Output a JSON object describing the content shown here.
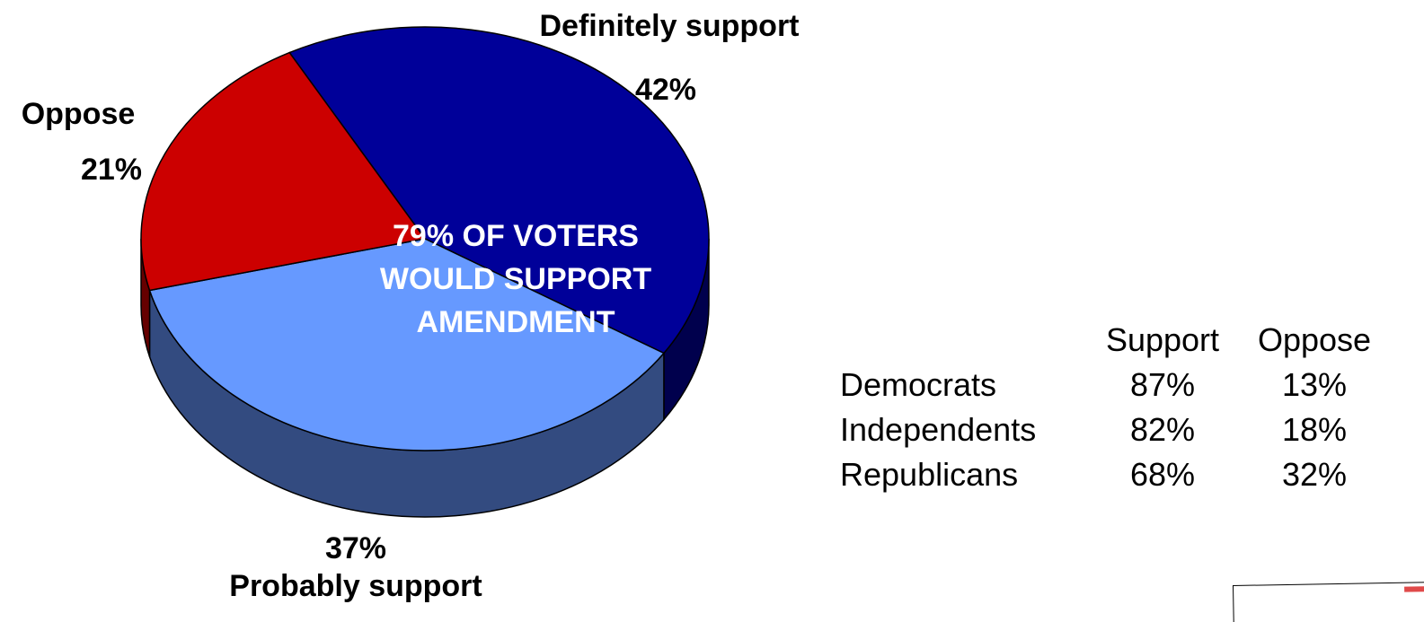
{
  "chart_data": {
    "type": "pie",
    "style": "3d",
    "slices": [
      {
        "label": "Definitely support",
        "value": 42,
        "value_label": "42%",
        "color": "#000099"
      },
      {
        "label": "Probably support",
        "value": 37,
        "value_label": "37%",
        "color": "#6699FF",
        "side_color": "#334B80"
      },
      {
        "label": "Oppose",
        "value": 21,
        "value_label": "21%",
        "color": "#CC0000"
      }
    ],
    "center_text": [
      "79% OF VOTERS",
      "WOULD SUPPORT",
      "AMENDMENT"
    ]
  },
  "table": {
    "headers": [
      "",
      "Support",
      "Oppose"
    ],
    "rows": [
      {
        "party": "Democrats",
        "support": "87%",
        "oppose": "13%"
      },
      {
        "party": "Independents",
        "support": "82%",
        "oppose": "18%"
      },
      {
        "party": "Republicans",
        "support": "68%",
        "oppose": "32%"
      }
    ]
  }
}
